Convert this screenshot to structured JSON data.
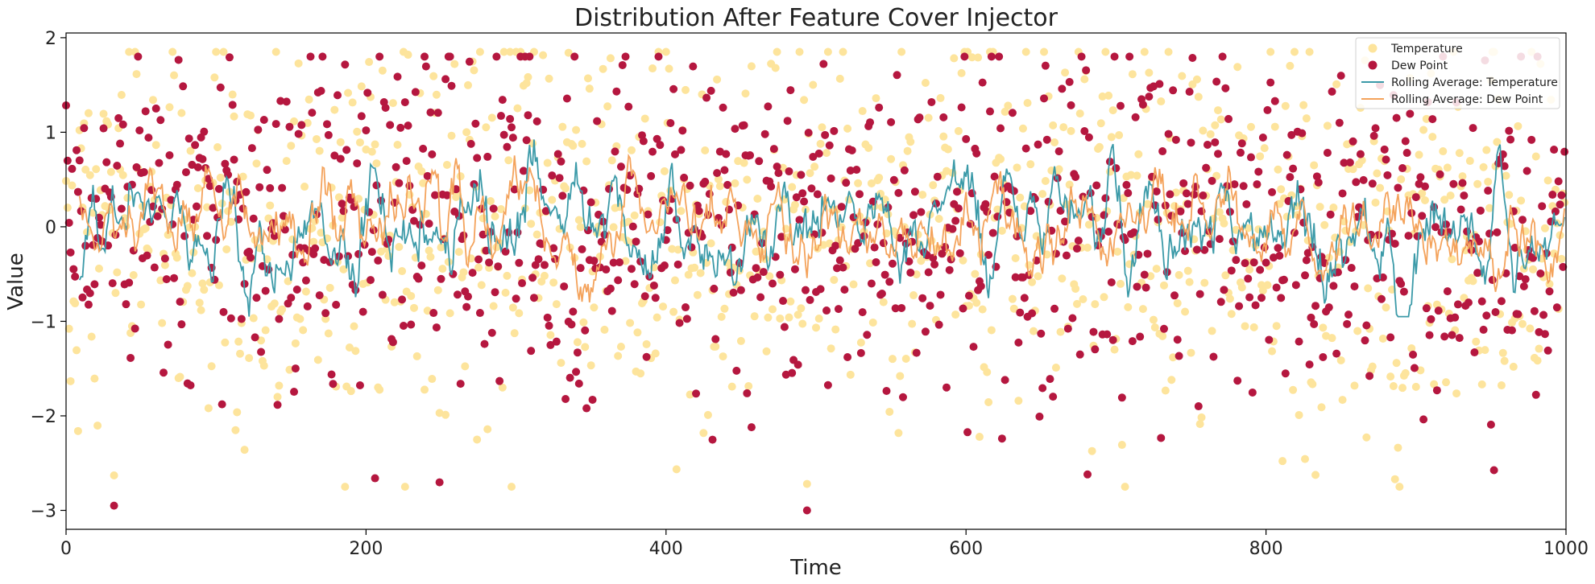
{
  "chart_data": {
    "type": "scatter",
    "title": "Distribution After Feature Cover Injector",
    "xlabel": "Time",
    "ylabel": "Value",
    "xlim": [
      0,
      1000
    ],
    "ylim": [
      -3.2,
      2.05
    ],
    "x_ticks": [
      0,
      200,
      400,
      600,
      800,
      1000
    ],
    "x_tick_labels": [
      "0",
      "200",
      "400",
      "600",
      "800",
      "1000"
    ],
    "y_ticks": [
      -3,
      -2,
      -1,
      0,
      1,
      2
    ],
    "y_tick_labels": [
      "−3",
      "−2",
      "−1",
      "0",
      "1",
      "2"
    ],
    "grid": false,
    "legend_position": "top-right",
    "n_points": 1000,
    "rolling_window": 10,
    "series": [
      {
        "name": "Temperature",
        "kind": "scatter",
        "color": "#fde49c",
        "mean": 0.0,
        "std": 1.0,
        "min": -2.75,
        "max": 1.85
      },
      {
        "name": "Dew Point",
        "kind": "scatter",
        "color": "#b5173f",
        "mean": 0.0,
        "std": 0.9,
        "min": -3.0,
        "max": 1.8
      },
      {
        "name": "Rolling Average: Temperature",
        "kind": "line",
        "color": "#3b9aa8",
        "range": [
          -0.95,
          0.95
        ]
      },
      {
        "name": "Rolling Average: Dew Point",
        "kind": "line",
        "color": "#f4a35c",
        "range": [
          -0.8,
          0.8
        ]
      }
    ],
    "notable_points": [
      {
        "series": "Dew Point",
        "x": 32,
        "y": -2.95
      },
      {
        "series": "Dew Point",
        "x": 494,
        "y": -3.0
      },
      {
        "series": "Temperature",
        "x": 494,
        "y": -2.72
      },
      {
        "series": "Temperature",
        "x": 32,
        "y": -2.63
      },
      {
        "series": "Dew Point",
        "x": 206,
        "y": -2.66
      },
      {
        "series": "Temperature",
        "x": 228,
        "y": 1.82
      },
      {
        "series": "Dew Point",
        "x": 255,
        "y": 1.8
      },
      {
        "series": "Temperature",
        "x": 608,
        "y": 1.79
      },
      {
        "series": "Dew Point",
        "x": 946,
        "y": 1.76
      }
    ]
  }
}
